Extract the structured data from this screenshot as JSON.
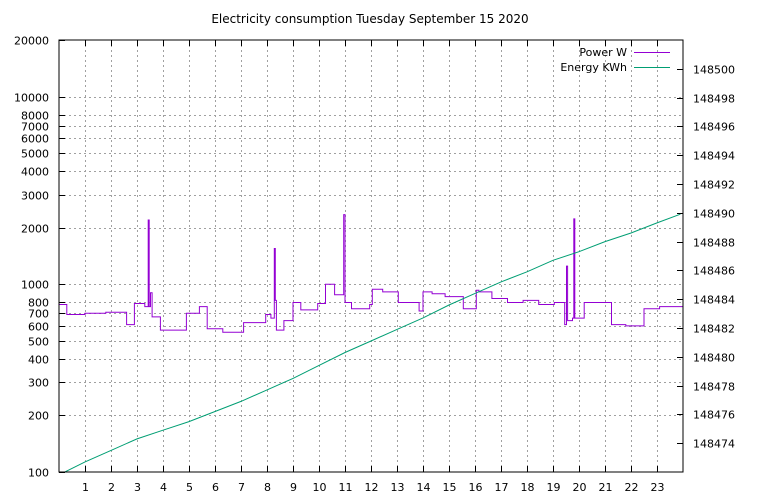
{
  "chart_data": {
    "type": "line",
    "title": "Electricity consumption Tuesday September 15 2020",
    "xlabel": "",
    "ylabel": "",
    "y2label": "",
    "xlim": [
      0,
      24
    ],
    "ylim": [
      100,
      20000
    ],
    "y_scale": "log",
    "y2lim": [
      148472,
      148502
    ],
    "y2_scale": "linear",
    "x_ticks": [
      "1",
      "2",
      "3",
      "4",
      "5",
      "6",
      "7",
      "8",
      "9",
      "10",
      "11",
      "12",
      "13",
      "14",
      "15",
      "16",
      "17",
      "18",
      "19",
      "20",
      "21",
      "22",
      "23"
    ],
    "y_ticks": [
      {
        "value": 100,
        "label": "100"
      },
      {
        "value": 200,
        "label": "200"
      },
      {
        "value": 300,
        "label": "300"
      },
      {
        "value": 400,
        "label": "400"
      },
      {
        "value": 500,
        "label": "500"
      },
      {
        "value": 600,
        "label": "600"
      },
      {
        "value": 700,
        "label": "700"
      },
      {
        "value": 800,
        "label": "800"
      },
      {
        "value": 1000,
        "label": "1000"
      },
      {
        "value": 2000,
        "label": "2000"
      },
      {
        "value": 3000,
        "label": "3000"
      },
      {
        "value": 4000,
        "label": "4000"
      },
      {
        "value": 5000,
        "label": "5000"
      },
      {
        "value": 6000,
        "label": "6000"
      },
      {
        "value": 7000,
        "label": "7000"
      },
      {
        "value": 8000,
        "label": "8000"
      },
      {
        "value": 10000,
        "label": "10000"
      },
      {
        "value": 20000,
        "label": "20000"
      }
    ],
    "y2_ticks": [
      "148474",
      "148476",
      "148478",
      "148480",
      "148482",
      "148484",
      "148486",
      "148488",
      "148490",
      "148492",
      "148494",
      "148496",
      "148498",
      "148500"
    ],
    "grid": true,
    "legend_position": "top-right",
    "series": [
      {
        "name": "Power W",
        "color": "#9400d3",
        "axis": "left",
        "step": true,
        "points": [
          [
            0.0,
            780
          ],
          [
            0.3,
            690
          ],
          [
            1.0,
            700
          ],
          [
            1.8,
            710
          ],
          [
            2.6,
            610
          ],
          [
            2.9,
            790
          ],
          [
            3.3,
            760
          ],
          [
            3.43,
            2200
          ],
          [
            3.47,
            760
          ],
          [
            3.52,
            900
          ],
          [
            3.58,
            670
          ],
          [
            3.9,
            570
          ],
          [
            4.9,
            700
          ],
          [
            5.4,
            760
          ],
          [
            5.7,
            580
          ],
          [
            6.3,
            555
          ],
          [
            7.1,
            625
          ],
          [
            7.95,
            690
          ],
          [
            8.15,
            660
          ],
          [
            8.28,
            1550
          ],
          [
            8.32,
            820
          ],
          [
            8.36,
            570
          ],
          [
            8.65,
            640
          ],
          [
            9.0,
            800
          ],
          [
            9.3,
            730
          ],
          [
            9.95,
            790
          ],
          [
            10.25,
            1000
          ],
          [
            10.6,
            880
          ],
          [
            10.95,
            2350
          ],
          [
            11.0,
            800
          ],
          [
            11.25,
            740
          ],
          [
            11.95,
            780
          ],
          [
            12.05,
            940
          ],
          [
            12.45,
            910
          ],
          [
            13.05,
            800
          ],
          [
            13.85,
            720
          ],
          [
            14.0,
            910
          ],
          [
            14.35,
            890
          ],
          [
            14.85,
            860
          ],
          [
            15.55,
            740
          ],
          [
            16.05,
            930
          ],
          [
            16.15,
            910
          ],
          [
            16.65,
            840
          ],
          [
            17.25,
            800
          ],
          [
            17.85,
            820
          ],
          [
            18.45,
            780
          ],
          [
            19.05,
            800
          ],
          [
            19.45,
            610
          ],
          [
            19.52,
            1250
          ],
          [
            19.56,
            640
          ],
          [
            19.75,
            660
          ],
          [
            19.8,
            2230
          ],
          [
            19.84,
            660
          ],
          [
            20.2,
            800
          ],
          [
            21.25,
            610
          ],
          [
            21.8,
            600
          ],
          [
            22.5,
            740
          ],
          [
            23.1,
            760
          ],
          [
            23.9,
            760
          ]
        ]
      },
      {
        "name": "Energy KWh",
        "color": "#009e73",
        "axis": "right",
        "step": false,
        "points": [
          [
            0.0,
            148471.8
          ],
          [
            1.0,
            148472.7
          ],
          [
            2.0,
            148473.5
          ],
          [
            3.0,
            148474.3
          ],
          [
            4.0,
            148474.9
          ],
          [
            5.0,
            148475.5
          ],
          [
            6.0,
            148476.2
          ],
          [
            7.0,
            148476.9
          ],
          [
            8.0,
            148477.7
          ],
          [
            9.0,
            148478.5
          ],
          [
            10.0,
            148479.4
          ],
          [
            11.0,
            148480.3
          ],
          [
            12.0,
            148481.1
          ],
          [
            13.0,
            148481.9
          ],
          [
            14.0,
            148482.7
          ],
          [
            15.0,
            148483.6
          ],
          [
            16.0,
            148484.4
          ],
          [
            17.0,
            148485.2
          ],
          [
            18.0,
            148485.9
          ],
          [
            19.0,
            148486.7
          ],
          [
            20.0,
            148487.3
          ],
          [
            21.0,
            148488.0
          ],
          [
            22.0,
            148488.6
          ],
          [
            23.0,
            148489.3
          ],
          [
            23.9,
            148489.9
          ]
        ]
      }
    ]
  }
}
